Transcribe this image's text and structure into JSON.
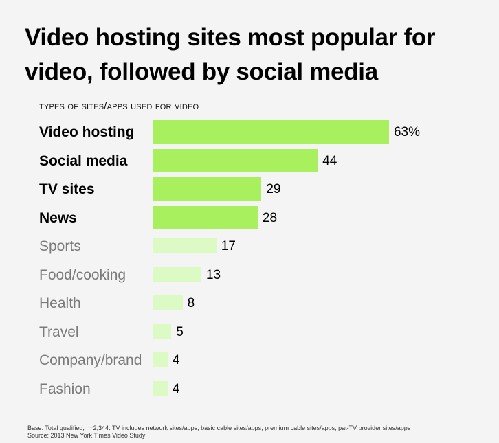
{
  "title": "Video hosting sites most popular for video, followed by social media",
  "subtitle": "Types of sites/apps used for video",
  "footnote": {
    "base": "Base: Total qualified, n=2,344. TV includes network sites/apps, basic cable sites/apps, premium cable sites/apps, pat-TV provider sites/apps",
    "source": "Source: 2013 New York Times Video Study"
  },
  "colors": {
    "highlight_bar": "#a8f05e",
    "muted_bar": "#dcfac4",
    "background": "#f4f4f5"
  },
  "rows": [
    {
      "label": "Video hosting",
      "value": 63,
      "display": "63%",
      "highlight": true
    },
    {
      "label": "Social media",
      "value": 44,
      "display": "44",
      "highlight": true
    },
    {
      "label": "TV sites",
      "value": 29,
      "display": "29",
      "highlight": true
    },
    {
      "label": "News",
      "value": 28,
      "display": "28",
      "highlight": true
    },
    {
      "label": "Sports",
      "value": 17,
      "display": "17",
      "highlight": false
    },
    {
      "label": "Food/cooking",
      "value": 13,
      "display": "13",
      "highlight": false
    },
    {
      "label": "Health",
      "value": 8,
      "display": "8",
      "highlight": false
    },
    {
      "label": "Travel",
      "value": 5,
      "display": "5",
      "highlight": false
    },
    {
      "label": "Company/brand",
      "value": 4,
      "display": "4",
      "highlight": false
    },
    {
      "label": "Fashion",
      "value": 4,
      "display": "4",
      "highlight": false
    }
  ],
  "chart_data": {
    "type": "bar",
    "orientation": "horizontal",
    "title": "Video hosting sites most popular for video, followed by social media",
    "subtitle": "Types of sites/apps used for video",
    "categories": [
      "Video hosting",
      "Social media",
      "TV sites",
      "News",
      "Sports",
      "Food/cooking",
      "Health",
      "Travel",
      "Company/brand",
      "Fashion"
    ],
    "values": [
      63,
      44,
      29,
      28,
      17,
      13,
      8,
      5,
      4,
      4
    ],
    "unit": "%",
    "highlighted": [
      "Video hosting",
      "Social media",
      "TV sites",
      "News"
    ],
    "xlabel": "",
    "ylabel": "",
    "grid": false,
    "legend": "none",
    "data_labels": true
  }
}
